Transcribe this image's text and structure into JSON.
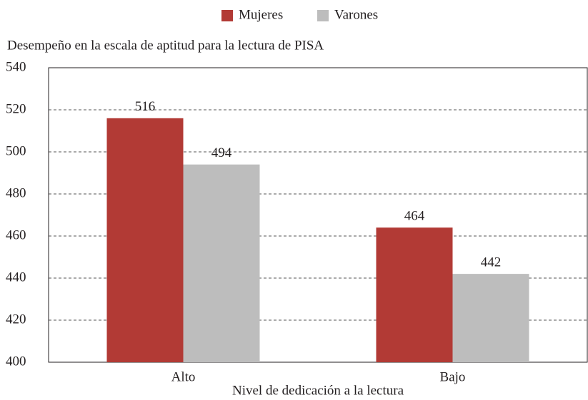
{
  "chart_data": {
    "type": "bar",
    "title": "Desempeño en la escala de aptitud para la lectura de PISA",
    "x_label": "Nivel de dedicación a la lectura",
    "categories": [
      "Alto",
      "Bajo"
    ],
    "series": [
      {
        "name": "Mujeres",
        "color": "#b23a35",
        "values": [
          516,
          464
        ]
      },
      {
        "name": "Varones",
        "color": "#bdbdbd",
        "values": [
          494,
          442
        ]
      }
    ],
    "ylim": [
      400,
      540
    ],
    "yticks": [
      400,
      420,
      440,
      460,
      480,
      500,
      520,
      540
    ],
    "grid": true,
    "legend": "top"
  }
}
